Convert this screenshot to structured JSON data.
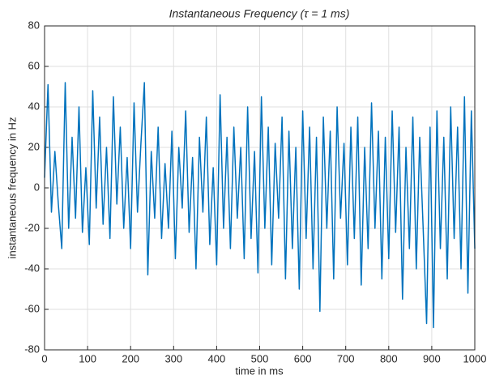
{
  "chart_data": {
    "type": "line",
    "title": "Instantaneous Frequency (τ = 1 ms)",
    "xlabel": "time in ms",
    "ylabel": "instantaneous frequency in Hz",
    "xlim": [
      0,
      1000
    ],
    "ylim": [
      -80,
      80
    ],
    "xticks": [
      0,
      100,
      200,
      300,
      400,
      500,
      600,
      700,
      800,
      900,
      1000
    ],
    "yticks": [
      -80,
      -60,
      -40,
      -20,
      0,
      20,
      40,
      60,
      80
    ],
    "grid": true,
    "x": [
      0,
      8,
      16,
      24,
      32,
      40,
      48,
      56,
      64,
      72,
      80,
      88,
      96,
      104,
      112,
      120,
      128,
      136,
      144,
      152,
      160,
      168,
      176,
      184,
      192,
      200,
      208,
      216,
      224,
      232,
      240,
      248,
      256,
      264,
      272,
      280,
      288,
      296,
      304,
      312,
      320,
      328,
      336,
      344,
      352,
      360,
      368,
      376,
      384,
      392,
      400,
      408,
      416,
      424,
      432,
      440,
      448,
      456,
      464,
      472,
      480,
      488,
      496,
      504,
      512,
      520,
      528,
      536,
      544,
      552,
      560,
      568,
      576,
      584,
      592,
      600,
      608,
      616,
      624,
      632,
      640,
      648,
      656,
      664,
      672,
      680,
      688,
      696,
      704,
      712,
      720,
      728,
      736,
      744,
      752,
      760,
      768,
      776,
      784,
      792,
      800,
      808,
      816,
      824,
      832,
      840,
      848,
      856,
      864,
      872,
      880,
      888,
      896,
      904,
      912,
      920,
      928,
      936,
      944,
      952,
      960,
      968,
      976,
      984,
      992,
      1000
    ],
    "series": [
      {
        "color": "#0072bd",
        "values": [
          5,
          51,
          -12,
          18,
          -8,
          -30,
          52,
          -20,
          25,
          -15,
          40,
          -22,
          10,
          -28,
          48,
          -10,
          35,
          -18,
          20,
          -25,
          45,
          -8,
          30,
          -20,
          15,
          -30,
          42,
          -12,
          22,
          52,
          -43,
          18,
          -15,
          30,
          -25,
          12,
          -20,
          28,
          -35,
          20,
          -10,
          38,
          -22,
          15,
          -40,
          25,
          -12,
          35,
          -28,
          10,
          -38,
          46,
          -20,
          25,
          -30,
          30,
          -15,
          20,
          -35,
          40,
          -25,
          18,
          -42,
          45,
          -20,
          30,
          -38,
          22,
          -15,
          35,
          -45,
          28,
          -30,
          20,
          -50,
          38,
          -25,
          30,
          -40,
          25,
          -61,
          35,
          -20,
          28,
          -45,
          40,
          -15,
          22,
          -38,
          30,
          -25,
          35,
          -48,
          20,
          -30,
          42,
          -20,
          28,
          -45,
          25,
          -35,
          38,
          -22,
          30,
          -55,
          20,
          -30,
          35,
          -40,
          25,
          -20,
          -67,
          30,
          -69,
          38,
          -30,
          25,
          -45,
          40,
          -25,
          30,
          -40,
          45,
          -52,
          38,
          -30
        ]
      }
    ]
  }
}
